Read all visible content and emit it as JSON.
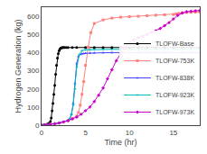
{
  "chart_data": {
    "type": "line",
    "xlabel": "Time (hr)",
    "ylabel": "Hydrogen Generation (kg)",
    "xlim": [
      0,
      18
    ],
    "ylim": [
      0,
      650
    ],
    "xticks": [
      0,
      5,
      10,
      15
    ],
    "yticks": [
      0,
      100,
      200,
      300,
      400,
      500,
      600
    ],
    "grid": false,
    "legend": "lower right",
    "series": [
      {
        "name": "TLOFW-Base",
        "color": "#000000",
        "marker": "circle",
        "x": [
          0,
          0.3,
          0.6,
          0.8,
          1.0,
          1.1,
          1.2,
          1.3,
          1.4,
          1.5,
          1.6,
          1.7,
          1.8,
          1.9,
          2.0,
          2.1,
          2.2,
          2.3,
          2.4,
          2.5,
          2.6,
          2.8,
          3.0,
          3.5,
          4.0,
          5.0,
          6.0,
          7.0,
          8.0,
          9.0,
          10.0,
          11.0,
          12.0,
          13.0,
          14.0,
          15.0,
          16.0,
          17.0,
          18.0
        ],
        "values": [
          0,
          2,
          5,
          10,
          20,
          40,
          80,
          120,
          170,
          220,
          280,
          330,
          370,
          395,
          410,
          420,
          425,
          427,
          428,
          428,
          428,
          428,
          428,
          428,
          428,
          428,
          428,
          428,
          428,
          428,
          428,
          428,
          428,
          428,
          428,
          428,
          428,
          428,
          428
        ]
      },
      {
        "name": "TLOFW-753K",
        "color": "#ff8080",
        "marker": "square",
        "x": [
          0,
          0.5,
          1.0,
          1.5,
          2.0,
          2.5,
          3.0,
          3.5,
          4.0,
          4.2,
          4.4,
          4.6,
          4.8,
          5.0,
          5.3,
          5.6,
          6.0,
          7.0,
          8.0,
          9.0,
          10.0,
          11.0,
          12.0,
          13.0,
          14.0,
          15.0,
          15.3,
          15.6,
          16.0,
          16.5,
          17.0,
          17.5,
          18.0
        ],
        "values": [
          0,
          2,
          5,
          8,
          12,
          18,
          25,
          35,
          50,
          70,
          110,
          170,
          240,
          330,
          430,
          510,
          560,
          580,
          590,
          595,
          598,
          600,
          603,
          606,
          608,
          610,
          613,
          616,
          619,
          621,
          622,
          623,
          624
        ]
      },
      {
        "name": "TLOFW-838K",
        "color": "#4444ff",
        "marker": "triangle-up",
        "x": [
          0,
          0.5,
          1.0,
          1.5,
          2.0,
          2.5,
          3.0,
          3.2,
          3.4,
          3.6,
          3.8,
          4.0,
          4.2,
          4.4,
          4.6,
          4.8,
          5.0,
          5.5,
          6.0,
          7.0,
          8.0,
          9.0,
          10.0,
          11.0,
          12.0,
          13.0,
          14.0,
          15.0,
          16.0,
          17.0,
          18.0
        ],
        "values": [
          0,
          2,
          5,
          8,
          12,
          18,
          25,
          35,
          60,
          120,
          230,
          340,
          380,
          390,
          393,
          395,
          396,
          397,
          398,
          399,
          400,
          400,
          400,
          400,
          400,
          400,
          400,
          400,
          400,
          400,
          400
        ]
      },
      {
        "name": "TLOFW-923K",
        "color": "#00bbbb",
        "marker": "triangle-down",
        "x": [
          0,
          0.5,
          1.0,
          1.5,
          2.0,
          2.5,
          3.0,
          3.2,
          3.4,
          3.6,
          3.8,
          4.0,
          4.3,
          4.6,
          5.0,
          5.5,
          6.0,
          7.0,
          8.0,
          9.0,
          10.0,
          11.0,
          12.0,
          13.0,
          14.0,
          15.0,
          16.0,
          17.0,
          18.0
        ],
        "values": [
          0,
          2,
          5,
          8,
          12,
          18,
          25,
          35,
          60,
          110,
          200,
          320,
          390,
          410,
          415,
          416,
          417,
          418,
          418,
          418,
          418,
          418,
          418,
          418,
          418,
          418,
          418,
          418,
          418
        ]
      },
      {
        "name": "TLOFW-973K",
        "color": "#cc00cc",
        "marker": "diamond",
        "x": [
          0,
          0.5,
          1.0,
          1.5,
          2.0,
          2.5,
          3.0,
          3.5,
          4.0,
          4.5,
          5.0,
          5.5,
          6.0,
          6.5,
          7.0,
          7.5,
          8.0,
          8.5,
          9.0,
          9.5,
          10.0,
          10.5,
          11.0,
          11.5,
          12.0,
          12.5,
          13.0,
          13.5,
          14.0,
          14.5,
          15.0,
          15.5,
          16.0,
          16.5,
          17.0,
          17.5,
          18.0
        ],
        "values": [
          0,
          2,
          5,
          8,
          12,
          18,
          25,
          35,
          45,
          60,
          80,
          100,
          130,
          165,
          205,
          255,
          305,
          355,
          395,
          425,
          455,
          470,
          482,
          490,
          500,
          510,
          520,
          533,
          548,
          565,
          585,
          605,
          618,
          625,
          628,
          630,
          632
        ]
      }
    ]
  }
}
